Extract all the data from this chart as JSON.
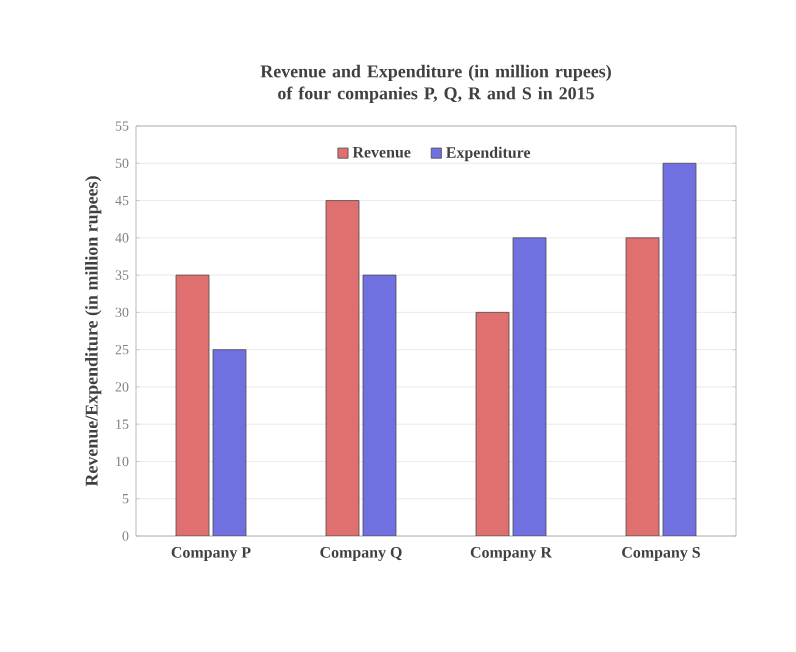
{
  "chart_data": {
    "type": "bar",
    "title": "Revenue and Expenditure (in million rupees) of four companies P, Q, R and S in 2015",
    "ylabel": "Revenue/Expenditure (in million rupees)",
    "categories": [
      "Company P",
      "Company Q",
      "Company R",
      "Company S"
    ],
    "series": [
      {
        "name": "Revenue",
        "color": "#e07070",
        "values": [
          35,
          45,
          30,
          40
        ]
      },
      {
        "name": "Expenditure",
        "color": "#7070e0",
        "values": [
          25,
          35,
          40,
          50
        ]
      }
    ],
    "ylim": [
      0,
      55
    ],
    "yticks": [
      0,
      5,
      10,
      15,
      20,
      25,
      30,
      35,
      40,
      45,
      50,
      55
    ],
    "grid": "y",
    "legend": "top"
  }
}
